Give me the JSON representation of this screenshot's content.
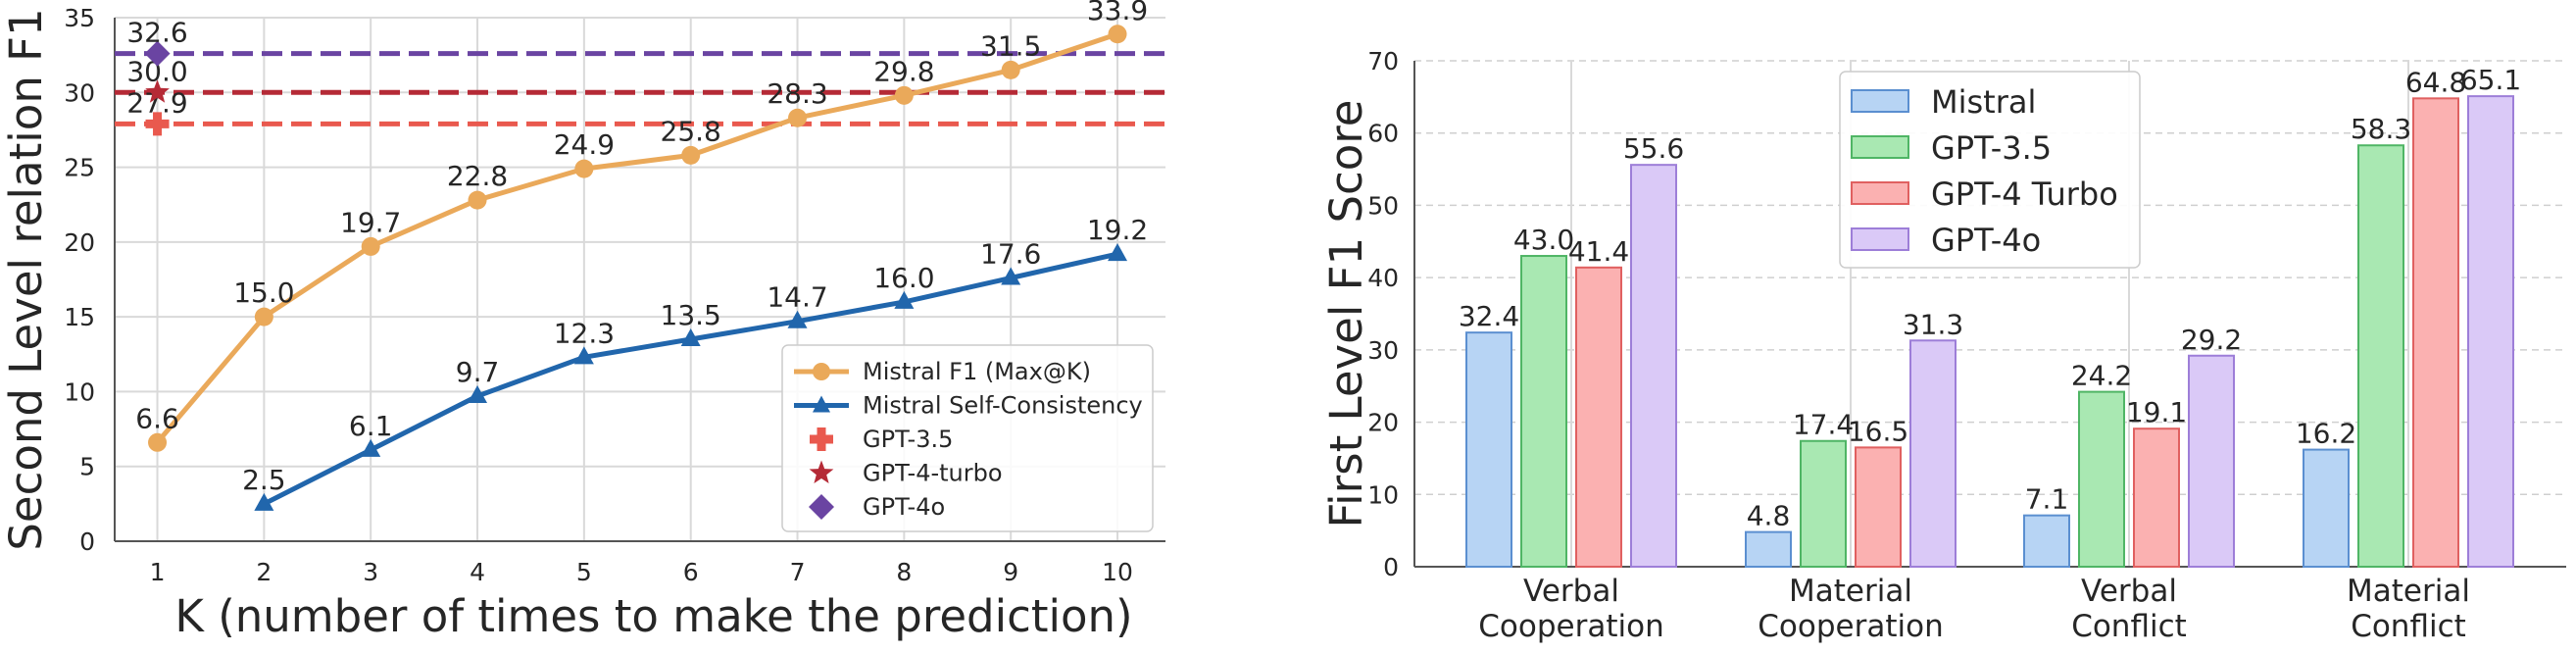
{
  "chart_data": [
    {
      "type": "line",
      "xlabel": "K (number of times to make the prediction)",
      "ylabel": "Second Level relation F1",
      "xlim": [
        0.6,
        10.45
      ],
      "ylim": [
        0,
        35
      ],
      "x_ticks": [
        1,
        2,
        3,
        4,
        5,
        6,
        7,
        8,
        9,
        10
      ],
      "y_ticks": [
        0,
        5,
        10,
        15,
        20,
        25,
        30,
        35
      ],
      "series": [
        {
          "name": "Mistral F1 (Max@K)",
          "color": "#eaa95a",
          "marker": "circle",
          "x": [
            1,
            2,
            3,
            4,
            5,
            6,
            7,
            8,
            9,
            10
          ],
          "values": [
            6.6,
            15.0,
            19.7,
            22.8,
            24.9,
            25.8,
            28.3,
            29.8,
            31.5,
            33.9
          ],
          "labels": [
            "6.6",
            "15.0",
            "19.7",
            "22.8",
            "24.9",
            "25.8",
            "28.3",
            "29.8",
            "31.5",
            "33.9"
          ]
        },
        {
          "name": "Mistral Self-Consistency",
          "color": "#2166ac",
          "marker": "triangle",
          "x": [
            2,
            3,
            4,
            5,
            6,
            7,
            8,
            9,
            10
          ],
          "values": [
            2.5,
            6.1,
            9.7,
            12.3,
            13.5,
            14.7,
            16.0,
            17.6,
            19.2
          ],
          "labels": [
            "2.5",
            "6.1",
            "9.7",
            "12.3",
            "13.5",
            "14.7",
            "16.0",
            "17.6",
            "19.2"
          ]
        }
      ],
      "baselines": [
        {
          "name": "GPT-3.5",
          "value": 27.9,
          "label": "27.9",
          "color": "#e9594e",
          "marker": "plus"
        },
        {
          "name": "GPT-4-turbo",
          "value": 30.0,
          "label": "30.0",
          "color": "#b52a36",
          "marker": "star"
        },
        {
          "name": "GPT-4o",
          "value": 32.6,
          "label": "32.6",
          "color": "#6a44a2",
          "marker": "diamond"
        }
      ],
      "legend_position": "lower-right"
    },
    {
      "type": "bar",
      "xlabel": "",
      "ylabel": "First Level F1 Score",
      "ylim": [
        0,
        70
      ],
      "y_ticks": [
        0,
        10,
        20,
        30,
        40,
        50,
        60,
        70
      ],
      "categories": [
        [
          "Verbal",
          "Cooperation"
        ],
        [
          "Material",
          "Cooperation"
        ],
        [
          "Verbal",
          "Conflict"
        ],
        [
          "Material",
          "Conflict"
        ]
      ],
      "series": [
        {
          "name": "Mistral",
          "fill": "#b7d4f4",
          "stroke": "#5b8fd0",
          "values": [
            32.4,
            4.8,
            7.1,
            16.2
          ],
          "labels": [
            "32.4",
            "4.8",
            "7.1",
            "16.2"
          ]
        },
        {
          "name": "GPT-3.5",
          "fill": "#a9e8b2",
          "stroke": "#4fb565",
          "values": [
            43.0,
            17.4,
            24.2,
            58.3
          ],
          "labels": [
            "43.0",
            "17.4",
            "24.2",
            "58.3"
          ]
        },
        {
          "name": "GPT-4 Turbo",
          "fill": "#fbb1b1",
          "stroke": "#e06060",
          "values": [
            41.4,
            16.5,
            19.1,
            64.8
          ],
          "labels": [
            "41.4",
            "16.5",
            "19.1",
            "64.8"
          ]
        },
        {
          "name": "GPT-4o",
          "fill": "#dac9f7",
          "stroke": "#9d7ed8",
          "values": [
            55.6,
            31.3,
            29.2,
            65.1
          ],
          "labels": [
            "55.6",
            "31.3",
            "29.2",
            "65.1"
          ]
        }
      ],
      "legend_position": "top-center"
    }
  ]
}
